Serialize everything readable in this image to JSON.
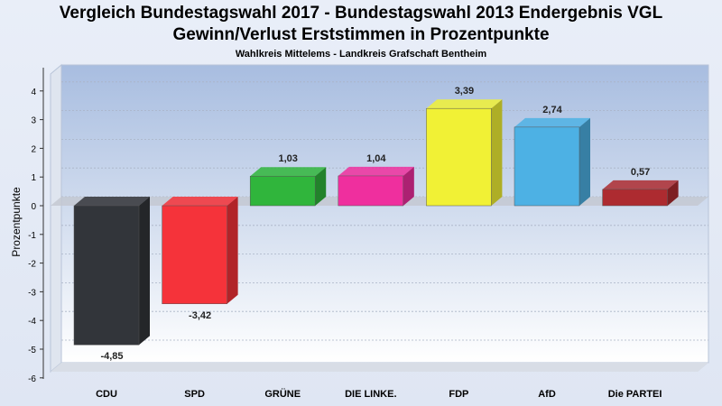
{
  "header": {
    "title_line1": "Vergleich Bundestagswahl 2017 - Bundestagswahl 2013 Endergebnis VGL",
    "title_line2": "Gewinn/Verlust Erststimmen in Prozentpunkte",
    "subtitle": "Wahlkreis Mittelems - Landkreis Grafschaft Bentheim"
  },
  "chart_data": {
    "type": "bar",
    "title": "Vergleich Bundestagswahl 2017 - Bundestagswahl 2013 Endergebnis VGL",
    "subtitle": "Gewinn/Verlust Erststimmen in Prozentpunkte",
    "ylabel": "Prozentpunkte",
    "xlabel": "",
    "ylim": [
      -6,
      4.5
    ],
    "yticks": [
      4,
      3,
      2,
      1,
      0,
      -1,
      -2,
      -3,
      -4,
      -5,
      -6
    ],
    "grid": true,
    "categories": [
      "CDU",
      "SPD",
      "GRÜNE",
      "DIE LINKE.",
      "FDP",
      "AfD",
      "Die PARTEI"
    ],
    "values": [
      -4.85,
      -3.42,
      1.03,
      1.04,
      3.39,
      2.74,
      0.57
    ],
    "labels": [
      "-4,85",
      "-3,42",
      "1,03",
      "1,04",
      "3,39",
      "2,74",
      "0,57"
    ],
    "colors": [
      "#32353a",
      "#f5333a",
      "#30b53c",
      "#ef2f9e",
      "#f1f135",
      "#4db1e4",
      "#ad2b30"
    ]
  }
}
